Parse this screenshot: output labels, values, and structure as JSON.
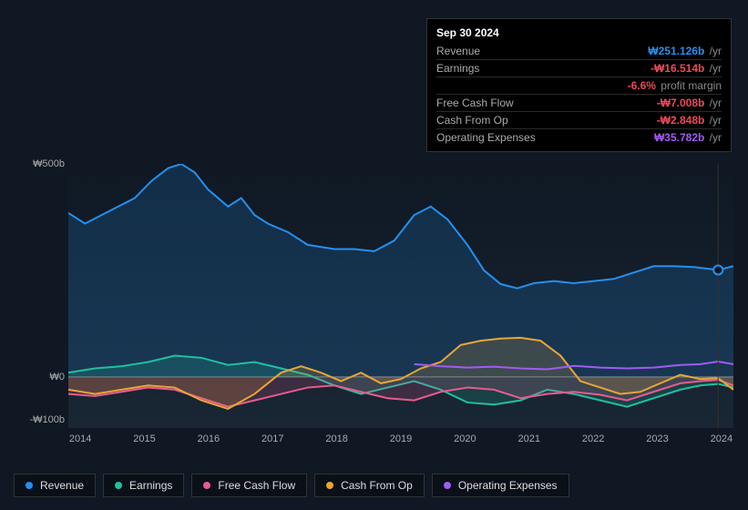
{
  "tooltip": {
    "date": "Sep 30 2024",
    "rows": [
      {
        "label": "Revenue",
        "value": "₩251.126b",
        "suffix": "/yr",
        "color": "#2490ef"
      },
      {
        "label": "Earnings",
        "value": "-₩16.514b",
        "suffix": "/yr",
        "color": "#e84b5a"
      },
      {
        "label": "",
        "value": "-6.6%",
        "suffix": "profit margin",
        "color": "#e84b5a"
      },
      {
        "label": "Free Cash Flow",
        "value": "-₩7.008b",
        "suffix": "/yr",
        "color": "#e84b5a"
      },
      {
        "label": "Cash From Op",
        "value": "-₩2.848b",
        "suffix": "/yr",
        "color": "#e84b5a"
      },
      {
        "label": "Operating Expenses",
        "value": "₩35.782b",
        "suffix": "/yr",
        "color": "#a05cf0"
      }
    ]
  },
  "chart": {
    "type": "area-line",
    "background_color": "#0f1823",
    "grid_zero_color": "#888888",
    "y_axis": {
      "min": -120,
      "max": 500,
      "ticks": [
        {
          "value": 500,
          "label": "₩500b"
        },
        {
          "value": 0,
          "label": "₩0"
        },
        {
          "value": -100,
          "label": "-₩100b"
        }
      ],
      "label_color": "#aaaaaa",
      "label_fontsize": 11
    },
    "x_axis": {
      "labels": [
        "2014",
        "2015",
        "2016",
        "2017",
        "2018",
        "2019",
        "2020",
        "2021",
        "2022",
        "2023",
        "2024"
      ],
      "label_color": "#aaaaaa",
      "label_fontsize": 11
    },
    "marker_x": 0.977,
    "series": [
      {
        "name": "Revenue",
        "color": "#2490ef",
        "fill": true,
        "points": [
          [
            0.0,
            385
          ],
          [
            0.025,
            360
          ],
          [
            0.05,
            380
          ],
          [
            0.075,
            400
          ],
          [
            0.1,
            420
          ],
          [
            0.125,
            460
          ],
          [
            0.15,
            490
          ],
          [
            0.17,
            500
          ],
          [
            0.19,
            480
          ],
          [
            0.21,
            440
          ],
          [
            0.24,
            400
          ],
          [
            0.26,
            420
          ],
          [
            0.28,
            380
          ],
          [
            0.3,
            360
          ],
          [
            0.33,
            340
          ],
          [
            0.36,
            310
          ],
          [
            0.4,
            300
          ],
          [
            0.43,
            300
          ],
          [
            0.46,
            295
          ],
          [
            0.49,
            320
          ],
          [
            0.52,
            380
          ],
          [
            0.545,
            400
          ],
          [
            0.57,
            370
          ],
          [
            0.6,
            310
          ],
          [
            0.625,
            250
          ],
          [
            0.65,
            218
          ],
          [
            0.675,
            208
          ],
          [
            0.7,
            220
          ],
          [
            0.73,
            225
          ],
          [
            0.76,
            220
          ],
          [
            0.79,
            225
          ],
          [
            0.82,
            230
          ],
          [
            0.85,
            245
          ],
          [
            0.88,
            260
          ],
          [
            0.91,
            260
          ],
          [
            0.94,
            258
          ],
          [
            0.977,
            251
          ],
          [
            1.0,
            260
          ]
        ]
      },
      {
        "name": "Earnings",
        "color": "#1fc0a0",
        "fill": true,
        "points": [
          [
            0.0,
            10
          ],
          [
            0.04,
            20
          ],
          [
            0.08,
            25
          ],
          [
            0.12,
            35
          ],
          [
            0.16,
            50
          ],
          [
            0.2,
            45
          ],
          [
            0.24,
            28
          ],
          [
            0.28,
            35
          ],
          [
            0.32,
            20
          ],
          [
            0.36,
            5
          ],
          [
            0.4,
            -20
          ],
          [
            0.44,
            -40
          ],
          [
            0.48,
            -25
          ],
          [
            0.52,
            -10
          ],
          [
            0.56,
            -30
          ],
          [
            0.6,
            -60
          ],
          [
            0.64,
            -65
          ],
          [
            0.68,
            -55
          ],
          [
            0.72,
            -30
          ],
          [
            0.76,
            -40
          ],
          [
            0.8,
            -55
          ],
          [
            0.84,
            -70
          ],
          [
            0.88,
            -50
          ],
          [
            0.92,
            -30
          ],
          [
            0.95,
            -20
          ],
          [
            0.977,
            -16.5
          ],
          [
            1.0,
            -25
          ]
        ]
      },
      {
        "name": "Free Cash Flow",
        "color": "#e85b8e",
        "fill": true,
        "points": [
          [
            0.0,
            -40
          ],
          [
            0.04,
            -45
          ],
          [
            0.08,
            -35
          ],
          [
            0.12,
            -25
          ],
          [
            0.16,
            -30
          ],
          [
            0.2,
            -50
          ],
          [
            0.24,
            -70
          ],
          [
            0.28,
            -55
          ],
          [
            0.32,
            -40
          ],
          [
            0.36,
            -25
          ],
          [
            0.4,
            -20
          ],
          [
            0.44,
            -35
          ],
          [
            0.48,
            -50
          ],
          [
            0.52,
            -55
          ],
          [
            0.56,
            -35
          ],
          [
            0.6,
            -25
          ],
          [
            0.64,
            -30
          ],
          [
            0.68,
            -50
          ],
          [
            0.72,
            -40
          ],
          [
            0.76,
            -35
          ],
          [
            0.8,
            -42
          ],
          [
            0.84,
            -55
          ],
          [
            0.88,
            -35
          ],
          [
            0.92,
            -15
          ],
          [
            0.95,
            -10
          ],
          [
            0.977,
            -7
          ],
          [
            1.0,
            -20
          ]
        ]
      },
      {
        "name": "Cash From Op",
        "color": "#e8a636",
        "fill": true,
        "points": [
          [
            0.0,
            -30
          ],
          [
            0.04,
            -40
          ],
          [
            0.08,
            -30
          ],
          [
            0.12,
            -20
          ],
          [
            0.16,
            -25
          ],
          [
            0.2,
            -55
          ],
          [
            0.24,
            -75
          ],
          [
            0.28,
            -40
          ],
          [
            0.32,
            10
          ],
          [
            0.35,
            25
          ],
          [
            0.38,
            10
          ],
          [
            0.41,
            -10
          ],
          [
            0.44,
            10
          ],
          [
            0.47,
            -15
          ],
          [
            0.5,
            -5
          ],
          [
            0.53,
            20
          ],
          [
            0.56,
            35
          ],
          [
            0.59,
            75
          ],
          [
            0.62,
            85
          ],
          [
            0.65,
            90
          ],
          [
            0.68,
            92
          ],
          [
            0.71,
            85
          ],
          [
            0.74,
            50
          ],
          [
            0.77,
            -10
          ],
          [
            0.8,
            -25
          ],
          [
            0.83,
            -40
          ],
          [
            0.86,
            -35
          ],
          [
            0.89,
            -15
          ],
          [
            0.92,
            5
          ],
          [
            0.95,
            -5
          ],
          [
            0.977,
            -2.8
          ],
          [
            1.0,
            -30
          ]
        ]
      },
      {
        "name": "Operating Expenses",
        "color": "#a05cf0",
        "fill": false,
        "points": [
          [
            0.52,
            30
          ],
          [
            0.56,
            25
          ],
          [
            0.6,
            22
          ],
          [
            0.64,
            24
          ],
          [
            0.68,
            20
          ],
          [
            0.72,
            18
          ],
          [
            0.76,
            26
          ],
          [
            0.8,
            22
          ],
          [
            0.84,
            20
          ],
          [
            0.88,
            22
          ],
          [
            0.92,
            28
          ],
          [
            0.95,
            30
          ],
          [
            0.977,
            36
          ],
          [
            1.0,
            30
          ]
        ]
      }
    ],
    "legend": [
      {
        "label": "Revenue",
        "color": "#2490ef"
      },
      {
        "label": "Earnings",
        "color": "#1fc0a0"
      },
      {
        "label": "Free Cash Flow",
        "color": "#e85b8e"
      },
      {
        "label": "Cash From Op",
        "color": "#e8a636"
      },
      {
        "label": "Operating Expenses",
        "color": "#a05cf0"
      }
    ]
  }
}
